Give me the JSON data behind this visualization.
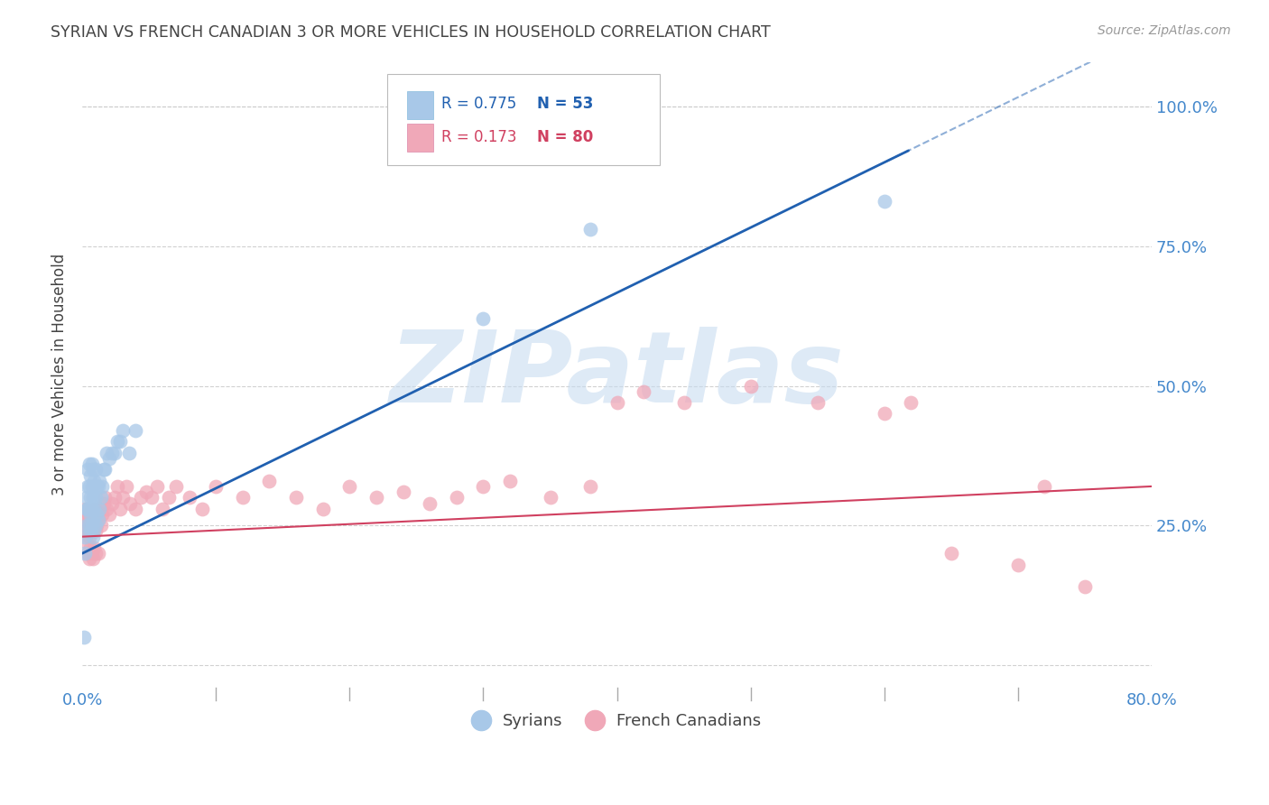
{
  "title": "SYRIAN VS FRENCH CANADIAN 3 OR MORE VEHICLES IN HOUSEHOLD CORRELATION CHART",
  "source": "Source: ZipAtlas.com",
  "ylabel": "3 or more Vehicles in Household",
  "xlim": [
    0.0,
    0.8
  ],
  "ylim": [
    -0.04,
    1.08
  ],
  "blue_color": "#A8C8E8",
  "pink_color": "#F0A8B8",
  "blue_line_color": "#2060B0",
  "pink_line_color": "#D04060",
  "axis_label_color": "#4488CC",
  "grid_color": "#CCCCCC",
  "title_color": "#444444",
  "source_color": "#999999",
  "watermark": "ZIPatlas",
  "watermark_color": "#C8DCF0",
  "legend_r_color": "#2060B0",
  "legend_n_color": "#2060B0",
  "legend_r2_color": "#D04060",
  "legend_n2_color": "#D04060",
  "syrians_x": [
    0.001,
    0.002,
    0.002,
    0.003,
    0.003,
    0.003,
    0.004,
    0.004,
    0.004,
    0.005,
    0.005,
    0.005,
    0.005,
    0.006,
    0.006,
    0.006,
    0.006,
    0.007,
    0.007,
    0.007,
    0.007,
    0.008,
    0.008,
    0.008,
    0.008,
    0.009,
    0.009,
    0.009,
    0.01,
    0.01,
    0.01,
    0.011,
    0.011,
    0.012,
    0.012,
    0.013,
    0.013,
    0.014,
    0.015,
    0.016,
    0.017,
    0.018,
    0.02,
    0.022,
    0.024,
    0.026,
    0.028,
    0.03,
    0.035,
    0.04,
    0.3,
    0.38,
    0.6
  ],
  "syrians_y": [
    0.05,
    0.2,
    0.23,
    0.25,
    0.28,
    0.3,
    0.28,
    0.32,
    0.35,
    0.25,
    0.28,
    0.32,
    0.36,
    0.24,
    0.27,
    0.3,
    0.34,
    0.25,
    0.28,
    0.32,
    0.36,
    0.23,
    0.26,
    0.3,
    0.35,
    0.24,
    0.28,
    0.33,
    0.25,
    0.3,
    0.35,
    0.27,
    0.32,
    0.26,
    0.32,
    0.28,
    0.33,
    0.3,
    0.32,
    0.35,
    0.35,
    0.38,
    0.37,
    0.38,
    0.38,
    0.4,
    0.4,
    0.42,
    0.38,
    0.42,
    0.62,
    0.78,
    0.83
  ],
  "french_x": [
    0.001,
    0.002,
    0.002,
    0.003,
    0.003,
    0.004,
    0.004,
    0.005,
    0.005,
    0.006,
    0.006,
    0.007,
    0.007,
    0.008,
    0.008,
    0.009,
    0.009,
    0.01,
    0.01,
    0.011,
    0.011,
    0.012,
    0.013,
    0.014,
    0.015,
    0.016,
    0.017,
    0.018,
    0.02,
    0.022,
    0.024,
    0.026,
    0.028,
    0.03,
    0.033,
    0.036,
    0.04,
    0.044,
    0.048,
    0.052,
    0.056,
    0.06,
    0.065,
    0.07,
    0.08,
    0.09,
    0.1,
    0.12,
    0.14,
    0.16,
    0.18,
    0.2,
    0.22,
    0.24,
    0.26,
    0.28,
    0.3,
    0.32,
    0.35,
    0.38,
    0.4,
    0.42,
    0.45,
    0.5,
    0.55,
    0.6,
    0.62,
    0.65,
    0.7,
    0.72,
    0.003,
    0.004,
    0.005,
    0.006,
    0.007,
    0.008,
    0.009,
    0.01,
    0.012,
    0.75
  ],
  "french_y": [
    0.26,
    0.24,
    0.28,
    0.25,
    0.27,
    0.24,
    0.26,
    0.23,
    0.27,
    0.24,
    0.26,
    0.25,
    0.27,
    0.24,
    0.26,
    0.25,
    0.28,
    0.24,
    0.26,
    0.25,
    0.27,
    0.26,
    0.28,
    0.25,
    0.27,
    0.29,
    0.3,
    0.28,
    0.27,
    0.29,
    0.3,
    0.32,
    0.28,
    0.3,
    0.32,
    0.29,
    0.28,
    0.3,
    0.31,
    0.3,
    0.32,
    0.28,
    0.3,
    0.32,
    0.3,
    0.28,
    0.32,
    0.3,
    0.33,
    0.3,
    0.28,
    0.32,
    0.3,
    0.31,
    0.29,
    0.3,
    0.32,
    0.33,
    0.3,
    0.32,
    0.47,
    0.49,
    0.47,
    0.5,
    0.47,
    0.45,
    0.47,
    0.2,
    0.18,
    0.32,
    0.22,
    0.2,
    0.19,
    0.21,
    0.2,
    0.19,
    0.21,
    0.2,
    0.2,
    0.14
  ]
}
